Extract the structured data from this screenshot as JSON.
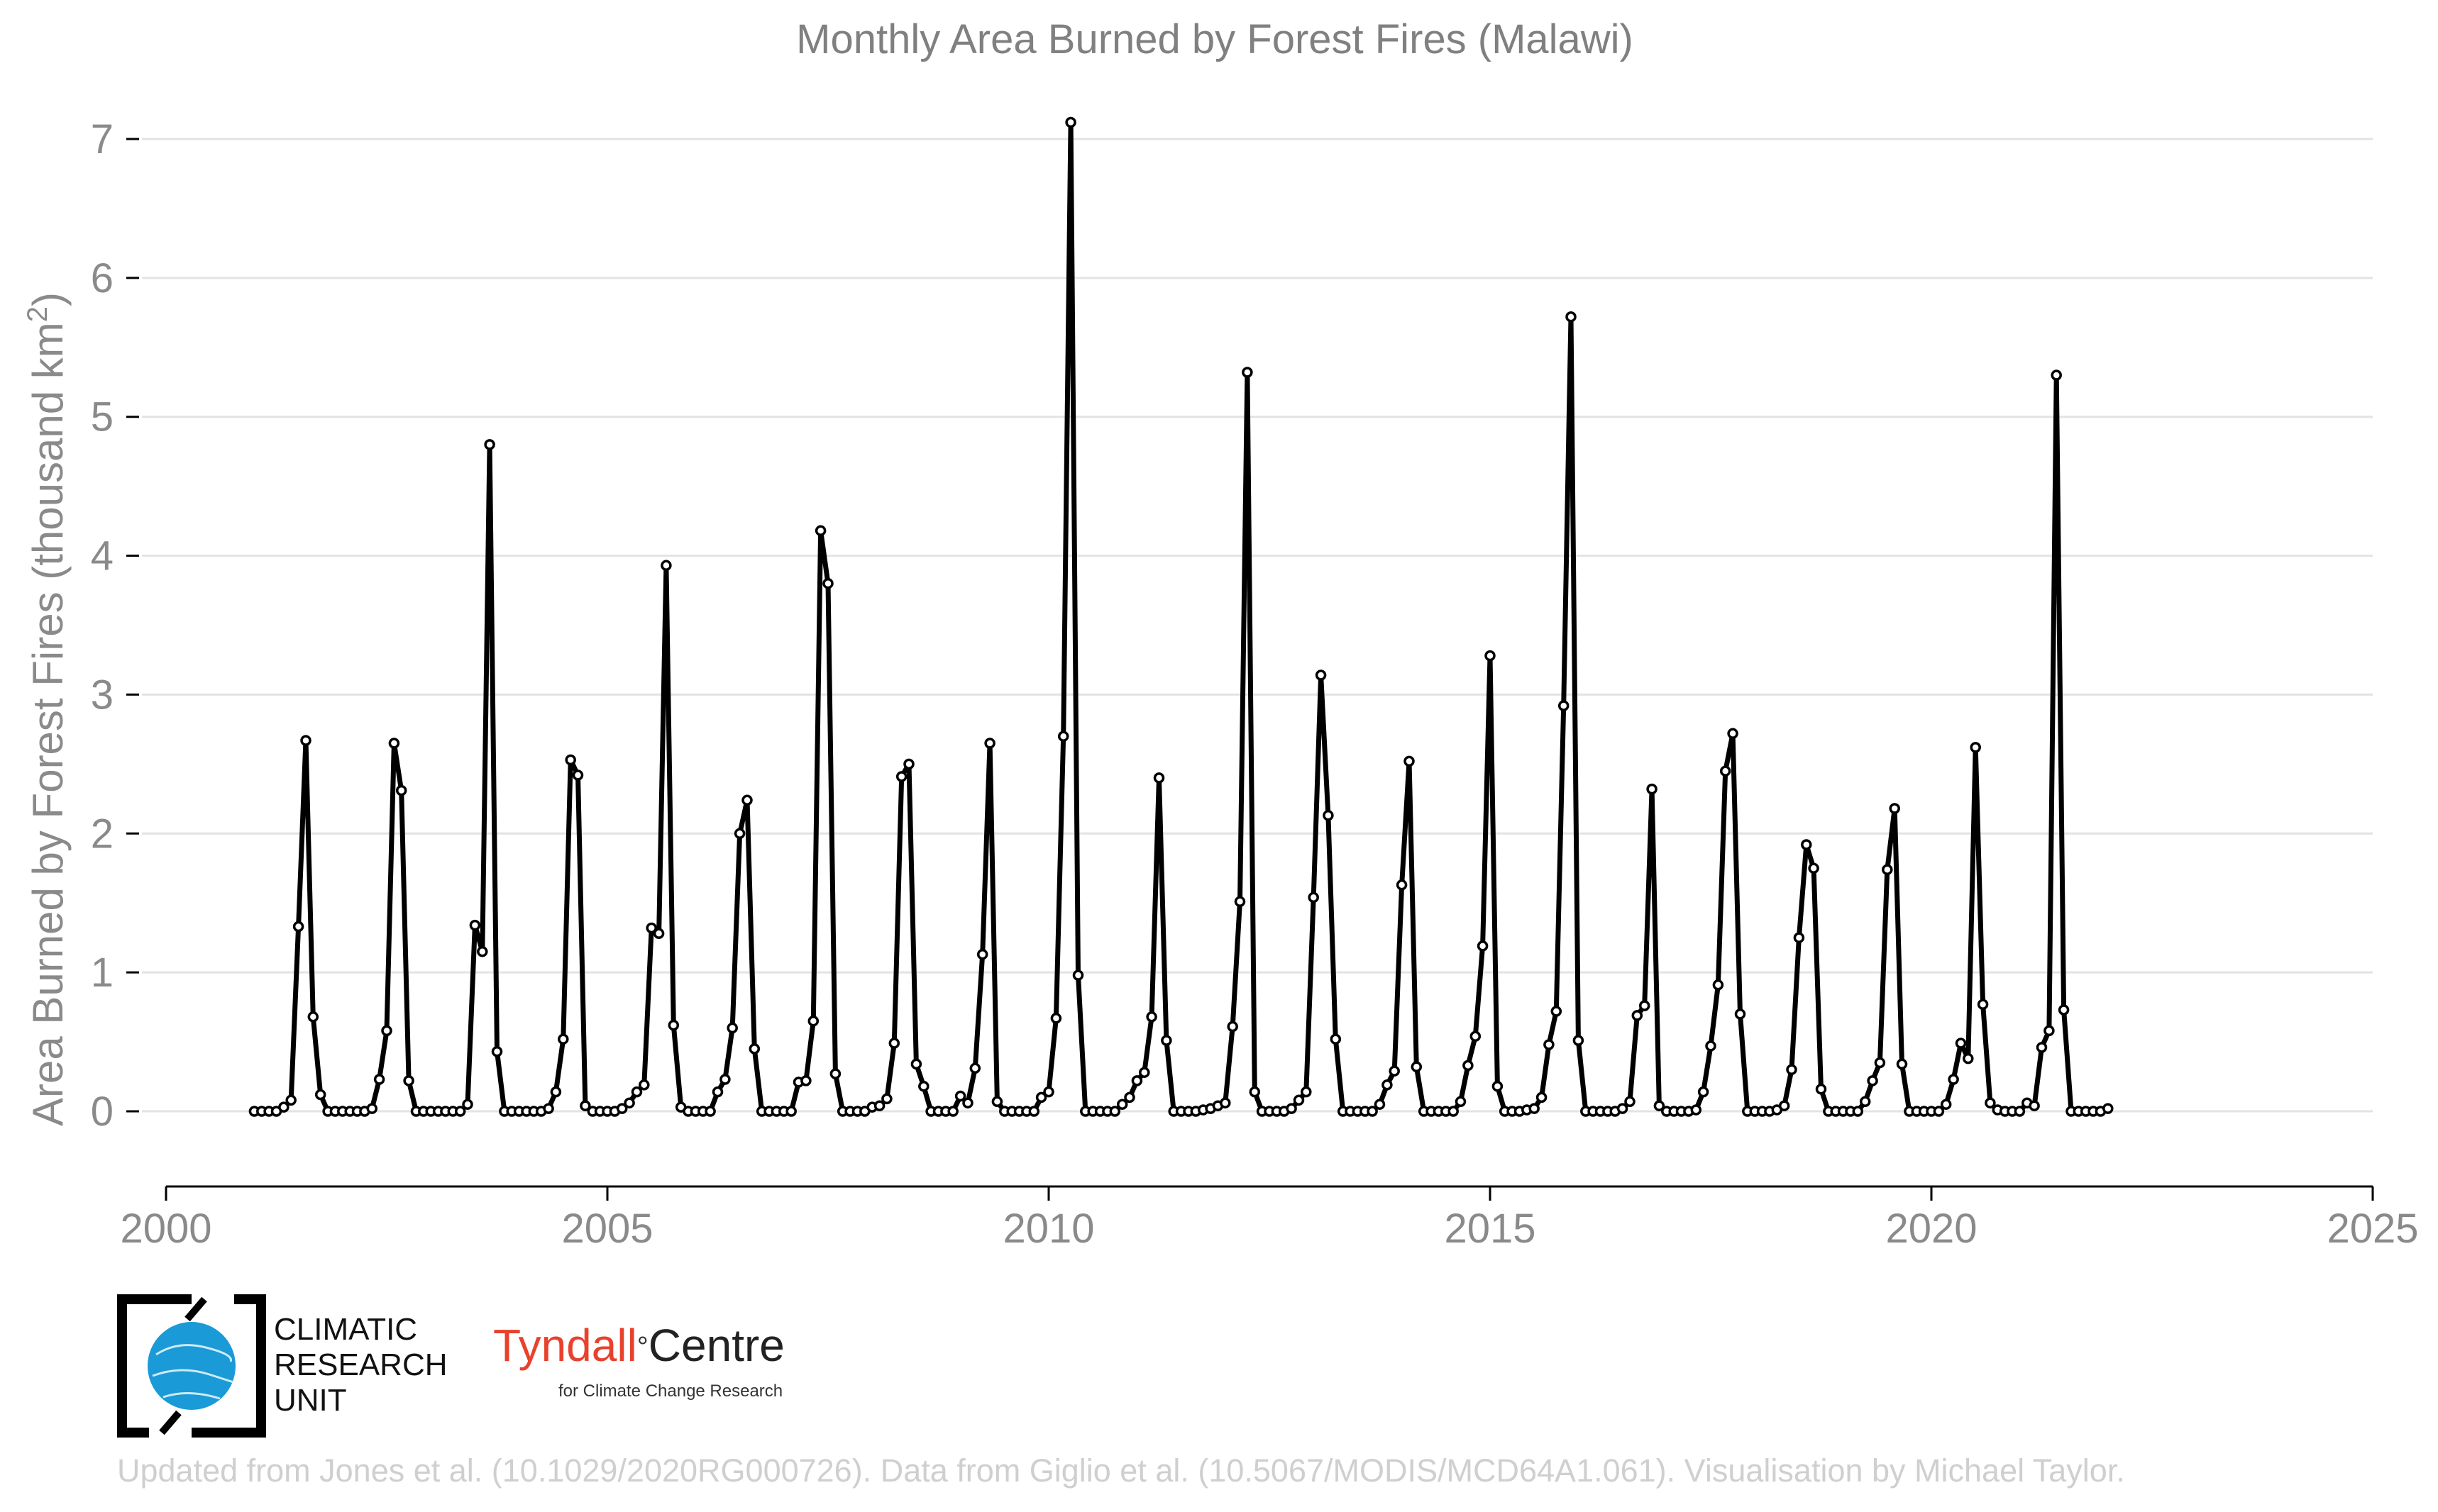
{
  "chart_data": {
    "type": "line",
    "title": "Monthly Area Burned by Forest Fires (Malawi)",
    "ylabel_main": "Area Burned by Forest Fires (thousand km",
    "ylabel_sup": "2",
    "ylabel_close": ")",
    "xlabel": "",
    "xlim": [
      2000,
      2025
    ],
    "ylim": [
      -0.55,
      7.2
    ],
    "x_ticks": [
      2000,
      2005,
      2010,
      2015,
      2020,
      2025
    ],
    "y_ticks": [
      0,
      1,
      2,
      3,
      4,
      5,
      6,
      7
    ],
    "grid": "horizontal",
    "x_start": 2001.0,
    "x_step": 0.08333333,
    "series": [
      {
        "values": [
          0,
          0,
          0,
          0,
          0.03,
          0.08,
          1.33,
          2.67,
          0.68,
          0.12,
          0,
          0,
          0,
          0,
          0,
          0,
          0.02,
          0.23,
          0.58,
          2.65,
          2.31,
          0.22,
          0,
          0,
          0,
          0,
          0,
          0,
          0,
          0.05,
          1.34,
          1.15,
          4.8,
          0.43,
          0,
          0,
          0,
          0,
          0,
          0,
          0.02,
          0.14,
          0.52,
          2.53,
          2.42,
          0.04,
          0,
          0,
          0,
          0,
          0.02,
          0.06,
          0.14,
          0.19,
          1.32,
          1.28,
          3.93,
          0.62,
          0.03,
          0,
          0,
          0,
          0,
          0.14,
          0.23,
          0.6,
          2.0,
          2.24,
          0.45,
          0,
          0,
          0,
          0,
          0,
          0.21,
          0.22,
          0.65,
          4.18,
          3.8,
          0.27,
          0,
          0,
          0,
          0,
          0.03,
          0.04,
          0.09,
          0.49,
          2.41,
          2.5,
          0.34,
          0.18,
          0,
          0,
          0,
          0,
          0.11,
          0.06,
          0.31,
          1.13,
          2.65,
          0.07,
          0,
          0,
          0,
          0,
          0,
          0.1,
          0.14,
          0.67,
          2.7,
          7.12,
          0.98,
          0,
          0,
          0,
          0,
          0,
          0.05,
          0.1,
          0.22,
          0.28,
          0.68,
          2.4,
          0.51,
          0,
          0,
          0,
          0,
          0.01,
          0.02,
          0.04,
          0.06,
          0.61,
          1.51,
          5.32,
          0.14,
          0,
          0,
          0,
          0,
          0.02,
          0.08,
          0.14,
          1.54,
          3.14,
          2.13,
          0.52,
          0,
          0,
          0,
          0,
          0,
          0.05,
          0.19,
          0.29,
          1.63,
          2.52,
          0.32,
          0,
          0,
          0,
          0,
          0,
          0.07,
          0.33,
          0.54,
          1.19,
          3.28,
          0.18,
          0,
          0,
          0,
          0.01,
          0.02,
          0.1,
          0.48,
          0.72,
          2.92,
          5.72,
          0.51,
          0,
          0,
          0,
          0,
          0,
          0.02,
          0.07,
          0.69,
          0.76,
          2.32,
          0.04,
          0,
          0,
          0,
          0,
          0.01,
          0.14,
          0.47,
          0.91,
          2.45,
          2.72,
          0.7,
          0,
          0,
          0,
          0,
          0.01,
          0.04,
          0.3,
          1.25,
          1.92,
          1.75,
          0.16,
          0,
          0,
          0,
          0,
          0,
          0.07,
          0.22,
          0.35,
          1.74,
          2.18,
          0.34,
          0,
          0,
          0,
          0,
          0,
          0.05,
          0.23,
          0.49,
          0.38,
          2.62,
          0.77,
          0.06,
          0.01,
          0,
          0,
          0,
          0.06,
          0.04,
          0.46,
          0.58,
          5.3,
          0.73,
          0,
          0,
          0,
          0,
          0,
          0.02
        ]
      }
    ]
  },
  "logos": {
    "cru_line1": "CLIMATIC",
    "cru_line2": "RESEARCH",
    "cru_line3": "UNIT",
    "tyndall_name": "Tyndall",
    "tyndall_degree": "°",
    "tyndall_centre": "Centre",
    "tyndall_sub": "for Climate Change Research"
  },
  "credit": "Updated from Jones et al. (10.1029/2020RG000726). Data from Giglio et al. (10.5067/MODIS/MCD64A1.061). Visualisation by Michael Taylor."
}
